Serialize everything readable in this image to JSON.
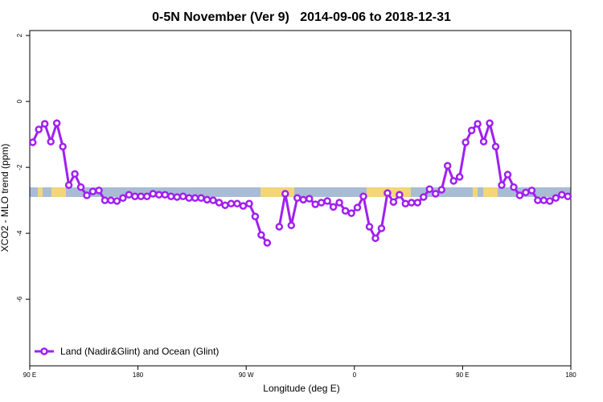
{
  "chart_data": {
    "type": "line",
    "title": "0-5N November (Ver 9)   2014-09-06 to 2018-12-31",
    "xlabel": "Longitude (deg E)",
    "ylabel": "XCO2 - MLO trend (ppm)",
    "xlim": [
      90,
      540
    ],
    "ylim": [
      -8.02,
      2.15
    ],
    "xticks": [
      {
        "value": 90,
        "label": "90 E"
      },
      180,
      {
        "value": 270,
        "label": "90 W"
      },
      {
        "value": 360,
        "label": "0"
      },
      {
        "value": 450,
        "label": "90 E"
      },
      {
        "value": 540,
        "label": "180"
      }
    ],
    "yticks": [
      2,
      0,
      -2,
      -4,
      -6
    ],
    "legend": "bottom-left",
    "x": [
      92.5,
      97.5,
      102.5,
      107.5,
      112.5,
      117.5,
      122.5,
      127.5,
      132.5,
      137.5,
      142.5,
      147.5,
      152.5,
      157.5,
      162.5,
      167.5,
      172.5,
      177.5,
      182.5,
      187.5,
      192.5,
      197.5,
      202.5,
      207.5,
      212.5,
      217.5,
      222.5,
      227.5,
      232.5,
      237.5,
      242.5,
      247.5,
      252.5,
      257.5,
      262.5,
      267.5,
      272.5,
      277.5,
      282.5,
      287.5,
      292.5,
      297.5,
      302.5,
      307.5,
      312.5,
      317.5,
      322.5,
      327.5,
      332.5,
      337.5,
      342.5,
      347.5,
      352.5,
      357.5,
      362.5,
      367.5,
      372.5,
      377.5,
      382.5,
      387.5,
      392.5,
      397.5,
      402.5,
      407.5,
      412.5,
      417.5,
      422.5,
      427.5,
      432.5,
      437.5,
      442.5,
      447.5,
      452.5,
      457.5,
      462.5,
      467.5,
      472.5,
      477.5,
      482.5,
      487.5,
      492.5,
      497.5,
      502.5,
      507.5,
      512.5,
      517.5,
      522.5,
      527.5,
      532.5,
      537.5
    ],
    "series": [
      {
        "name": "Land (Nadir&Glint) and Ocean (Glint)",
        "color": "#a020f0",
        "values": [
          -1.24,
          -0.85,
          -0.68,
          -1.22,
          -0.66,
          -1.37,
          -2.54,
          -2.2,
          -2.6,
          -2.85,
          -2.73,
          -2.7,
          -3.0,
          -3.0,
          -3.02,
          -2.93,
          -2.83,
          -2.88,
          -2.88,
          -2.88,
          -2.8,
          -2.83,
          -2.83,
          -2.88,
          -2.9,
          -2.88,
          -2.93,
          -2.93,
          -2.93,
          -2.98,
          -3.0,
          -3.07,
          -3.15,
          -3.1,
          -3.1,
          -3.17,
          -3.1,
          -3.49,
          -4.05,
          -4.29,
          null,
          -3.8,
          -2.8,
          -3.76,
          -2.93,
          -2.98,
          -2.95,
          -3.12,
          -3.07,
          -3.02,
          -3.2,
          -3.07,
          -3.32,
          -3.39,
          -3.22,
          -2.88,
          -3.8,
          -4.15,
          -3.85,
          -2.78,
          -3.05,
          -2.83,
          -3.1,
          -3.07,
          -3.07,
          -2.9,
          -2.66,
          -2.8,
          -2.68,
          -1.95,
          -2.41,
          -2.29,
          -1.24,
          -0.88,
          -0.68,
          -1.22,
          -0.66,
          -1.37,
          -2.54,
          -2.22,
          -2.6,
          -2.85,
          -2.76,
          -2.7,
          -3.0,
          -3.0,
          -3.02,
          -2.93,
          -2.83,
          -2.88
        ]
      }
    ]
  }
}
